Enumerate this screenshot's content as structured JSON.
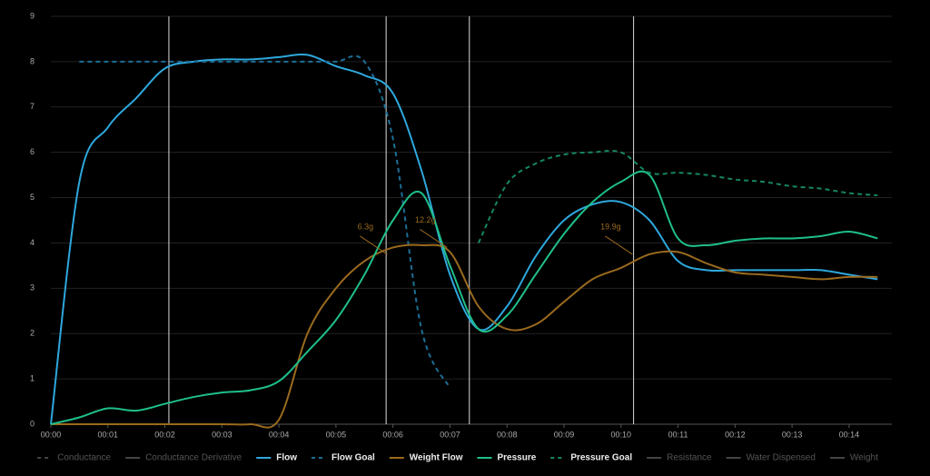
{
  "chart_data": {
    "type": "line",
    "x": [
      0,
      0.5,
      1,
      1.5,
      2,
      2.5,
      3,
      3.5,
      4,
      4.5,
      5,
      5.5,
      6,
      6.5,
      7,
      7.5,
      8,
      8.5,
      9,
      9.5,
      10,
      10.5,
      11,
      11.5,
      12,
      12.5,
      13,
      13.5,
      14,
      14.5
    ],
    "xlim": [
      0,
      14.75
    ],
    "xticks": [
      {
        "value": 0,
        "label": "00:00"
      },
      {
        "value": 1,
        "label": "00:01"
      },
      {
        "value": 2,
        "label": "00:02"
      },
      {
        "value": 3,
        "label": "00:03"
      },
      {
        "value": 4,
        "label": "00:04"
      },
      {
        "value": 5,
        "label": "00:05"
      },
      {
        "value": 6,
        "label": "00:06"
      },
      {
        "value": 7,
        "label": "00:07"
      },
      {
        "value": 8,
        "label": "00:08"
      },
      {
        "value": 9,
        "label": "00:09"
      },
      {
        "value": 10,
        "label": "00:10"
      },
      {
        "value": 11,
        "label": "00:11"
      },
      {
        "value": 12,
        "label": "00:12"
      },
      {
        "value": 13,
        "label": "00:13"
      },
      {
        "value": 14,
        "label": "00:14"
      }
    ],
    "ylim": [
      0,
      9
    ],
    "yticks": [
      0,
      1,
      2,
      3,
      4,
      5,
      6,
      7,
      8,
      9
    ],
    "grid": true,
    "markers": [
      2.07,
      5.88,
      7.34,
      10.22
    ],
    "series": [
      {
        "name": "Conductance",
        "color": "#444444",
        "dashed": true,
        "visible": false
      },
      {
        "name": "Conductance Derivative",
        "color": "#444444",
        "dashed": false,
        "visible": false
      },
      {
        "name": "Flow",
        "color": "#2ea8dd",
        "dashed": false,
        "visible": true,
        "values": [
          0,
          5.35,
          6.55,
          7.2,
          7.85,
          8.0,
          8.05,
          8.05,
          8.1,
          8.15,
          7.9,
          7.7,
          7.3,
          5.6,
          3.3,
          2.1,
          2.6,
          3.7,
          4.5,
          4.85,
          4.9,
          4.5,
          3.6,
          3.4,
          3.4,
          3.4,
          3.4,
          3.4,
          3.3,
          3.2
        ]
      },
      {
        "name": "Flow Goal",
        "color": "#1d6e96",
        "dashed": true,
        "visible": true,
        "values": [
          null,
          8.0,
          8.0,
          8.0,
          8.0,
          8.0,
          8.0,
          8.0,
          8.0,
          8.0,
          8.0,
          8.0,
          6.3,
          2.1,
          0.8,
          null,
          null,
          null,
          null,
          null,
          null,
          null,
          null,
          null,
          null,
          null,
          null,
          null,
          null,
          null
        ]
      },
      {
        "name": "Weight Flow",
        "color": "#9a6a1e",
        "dashed": false,
        "visible": true,
        "values": [
          0,
          0,
          0,
          0,
          0,
          0,
          0,
          0,
          0.1,
          2.0,
          3.0,
          3.6,
          3.9,
          3.95,
          3.8,
          2.6,
          2.1,
          2.2,
          2.7,
          3.2,
          3.45,
          3.75,
          3.8,
          3.55,
          3.35,
          3.3,
          3.25,
          3.2,
          3.25,
          3.25
        ]
      },
      {
        "name": "Pressure",
        "color": "#1fbf8a",
        "dashed": false,
        "visible": true,
        "values": [
          0,
          0.15,
          0.35,
          0.3,
          0.45,
          0.6,
          0.7,
          0.75,
          0.95,
          1.6,
          2.3,
          3.3,
          4.5,
          5.1,
          3.5,
          2.1,
          2.4,
          3.3,
          4.2,
          4.9,
          5.35,
          5.5,
          4.1,
          3.95,
          4.05,
          4.1,
          4.1,
          4.15,
          4.25,
          4.1
        ]
      },
      {
        "name": "Pressure Goal",
        "color": "#15875f",
        "dashed": true,
        "visible": true,
        "values": [
          null,
          null,
          null,
          null,
          null,
          null,
          null,
          null,
          null,
          null,
          null,
          null,
          null,
          null,
          null,
          4.0,
          5.3,
          5.75,
          5.95,
          6.0,
          6.0,
          5.55,
          5.55,
          5.5,
          5.4,
          5.35,
          5.25,
          5.2,
          5.1,
          5.05
        ]
      },
      {
        "name": "Resistance",
        "color": "#444444",
        "dashed": false,
        "visible": false
      },
      {
        "name": "Water Dispensed",
        "color": "#444444",
        "dashed": false,
        "visible": false
      },
      {
        "name": "Weight",
        "color": "#444444",
        "dashed": false,
        "visible": false
      }
    ],
    "annotations": [
      {
        "label": "6.3g",
        "x": 5.9,
        "y": 3.75
      },
      {
        "label": "12.2g",
        "x": 6.95,
        "y": 3.9
      },
      {
        "label": "19.9g",
        "x": 10.2,
        "y": 3.75
      }
    ]
  }
}
